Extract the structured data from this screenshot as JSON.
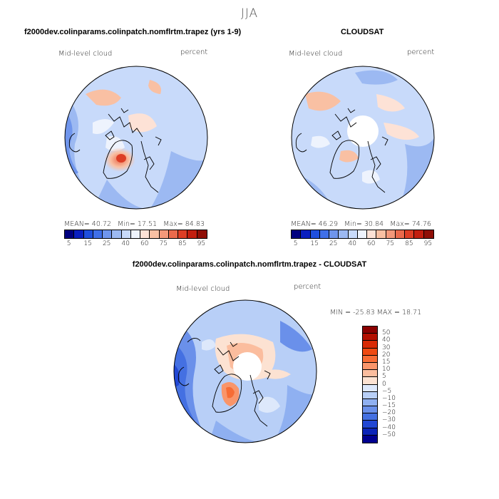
{
  "figure": {
    "season": "JJA",
    "panels": [
      {
        "title": "f2000dev.colinparams.colinpatch.nomflrtm.trapez (yrs 1-9)",
        "variable": "Mid-level cloud",
        "units": "percent",
        "stats": {
          "mean_label": "MEAN=",
          "mean": "40.72",
          "min_label": "Min=",
          "min": "17.51",
          "max_label": "Max=",
          "max": "84.83"
        },
        "polar_hole": false
      },
      {
        "title": "CLOUDSAT",
        "variable": "Mid-level cloud",
        "units": "percent",
        "stats": {
          "mean_label": "MEAN=",
          "mean": "46.29",
          "min_label": "Min=",
          "min": "30.84",
          "max_label": "Max=",
          "max": "74.76"
        },
        "polar_hole": true
      },
      {
        "title": "f2000dev.colinparams.colinpatch.nomflrtm.trapez - CLOUDSAT",
        "variable": "Mid-level cloud",
        "units": "percent",
        "minmax": "MIN = -25.83 MAX =  18.71",
        "polar_hole": true
      }
    ],
    "field_colorbar": {
      "colors": [
        "#00007f",
        "#0a1fbf",
        "#1f4fdd",
        "#3f6fe8",
        "#6f95ec",
        "#9cb9f2",
        "#c8dafa",
        "#eef3fd",
        "#fde2d6",
        "#f9c0a3",
        "#f3987a",
        "#ea6a4c",
        "#dd3e25",
        "#c21e0f",
        "#8f0e06"
      ],
      "tick_labels": [
        "5",
        "15",
        "25",
        "40",
        "60",
        "75",
        "85",
        "95"
      ]
    },
    "diff_colorbar": {
      "colors_top_to_bottom": [
        "#8b0000",
        "#b30f00",
        "#d92a05",
        "#ef4a12",
        "#f76c35",
        "#f9956a",
        "#fbbd9e",
        "#fce2d2",
        "#dde8fb",
        "#b8cff7",
        "#8fb0f1",
        "#6a90ea",
        "#4470e2",
        "#2147d4",
        "#0b24b8",
        "#000090"
      ],
      "tick_labels": [
        "50",
        "40",
        "30",
        "20",
        "15",
        "10",
        "5",
        "0",
        "-5",
        "-10",
        "-15",
        "-20",
        "-30",
        "-40",
        "-50"
      ]
    }
  }
}
